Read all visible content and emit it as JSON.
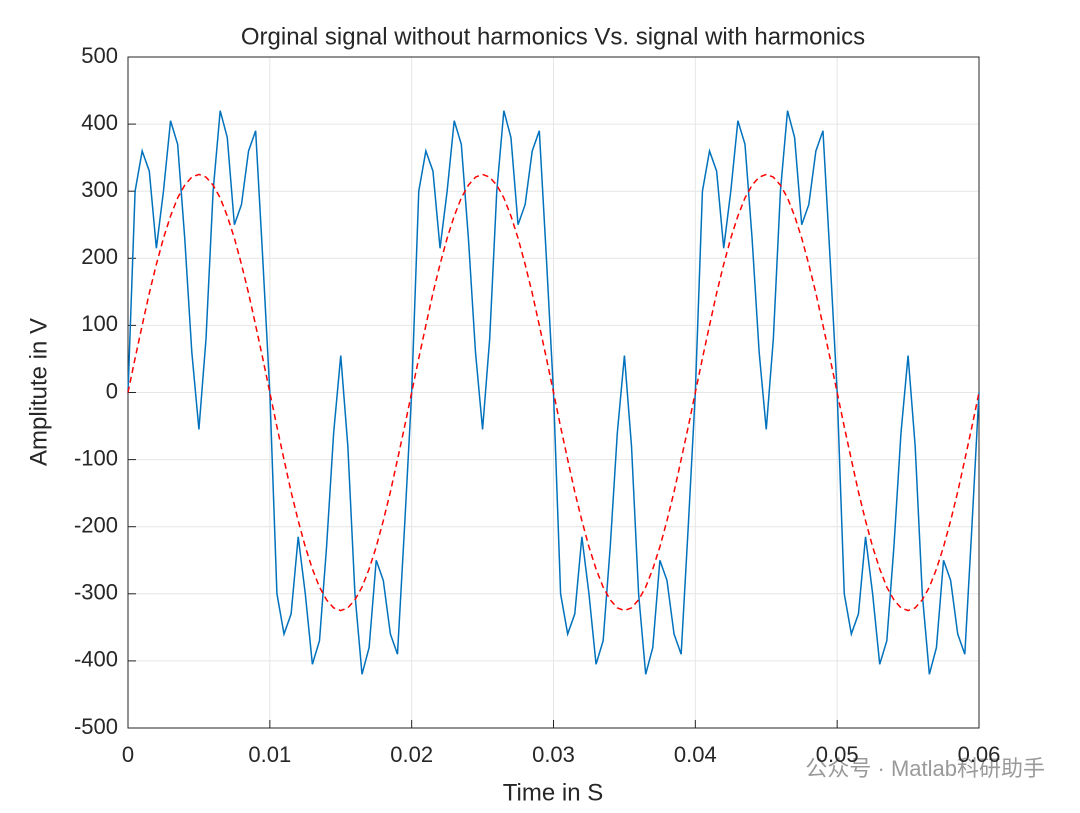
{
  "chart_data": {
    "type": "line",
    "title": "Orginal signal without harmonics Vs. signal with harmonics",
    "xlabel": "Time in S",
    "ylabel": "Amplitute in V",
    "watermark": "公众号 · Matlab科研助手",
    "xlim": [
      0,
      0.06
    ],
    "xticks": [
      0,
      0.01,
      0.02,
      0.03,
      0.04,
      0.05,
      0.06
    ],
    "ylim": [
      -500,
      500
    ],
    "yticks": [
      -500,
      -400,
      -300,
      -200,
      -100,
      0,
      100,
      200,
      300,
      400,
      500
    ],
    "grid": true,
    "x": [
      0,
      0.0005,
      0.001,
      0.0015,
      0.002,
      0.0025,
      0.003,
      0.0035,
      0.004,
      0.0045,
      0.005,
      0.0055,
      0.006,
      0.0065,
      0.007,
      0.0075,
      0.008,
      0.0085,
      0.009,
      0.0095,
      0.01,
      0.0105,
      0.011,
      0.0115,
      0.012,
      0.0125,
      0.013,
      0.0135,
      0.014,
      0.0145,
      0.015,
      0.0155,
      0.016,
      0.0165,
      0.017,
      0.0175,
      0.018,
      0.0185,
      0.019,
      0.0195,
      0.02,
      0.0205,
      0.021,
      0.0215,
      0.022,
      0.0225,
      0.023,
      0.0235,
      0.024,
      0.0245,
      0.025,
      0.0255,
      0.026,
      0.0265,
      0.027,
      0.0275,
      0.028,
      0.0285,
      0.029,
      0.0295,
      0.03,
      0.0305,
      0.031,
      0.0315,
      0.032,
      0.0325,
      0.033,
      0.0335,
      0.034,
      0.0345,
      0.035,
      0.0355,
      0.036,
      0.0365,
      0.037,
      0.0375,
      0.038,
      0.0385,
      0.039,
      0.0395,
      0.04,
      0.0405,
      0.041,
      0.0415,
      0.042,
      0.0425,
      0.043,
      0.0435,
      0.044,
      0.0445,
      0.045,
      0.0455,
      0.046,
      0.0465,
      0.047,
      0.0475,
      0.048,
      0.0485,
      0.049,
      0.0495,
      0.05,
      0.0505,
      0.051,
      0.0515,
      0.052,
      0.0525,
      0.053,
      0.0535,
      0.054,
      0.0545,
      0.055,
      0.0555,
      0.056,
      0.0565,
      0.057,
      0.0575,
      0.058,
      0.0585,
      0.059,
      0.0595,
      0.06
    ],
    "series": [
      {
        "name": "signal with harmonics",
        "color": "#0072bd",
        "dash": false,
        "values": [
          0,
          300,
          360,
          330,
          215,
          300,
          405,
          370,
          230,
          60,
          -55,
          80,
          300,
          420,
          380,
          250,
          280,
          360,
          390,
          200,
          0,
          -300,
          -360,
          -330,
          -215,
          -300,
          -405,
          -370,
          -230,
          -60,
          55,
          -80,
          -300,
          -420,
          -380,
          -250,
          -280,
          -360,
          -390,
          -200,
          0,
          300,
          360,
          330,
          215,
          300,
          405,
          370,
          230,
          60,
          -55,
          80,
          300,
          420,
          380,
          250,
          280,
          360,
          390,
          200,
          0,
          -300,
          -360,
          -330,
          -215,
          -300,
          -405,
          -370,
          -230,
          -60,
          55,
          -80,
          -300,
          -420,
          -380,
          -250,
          -280,
          -360,
          -390,
          -200,
          0,
          300,
          360,
          330,
          215,
          300,
          405,
          370,
          230,
          60,
          -55,
          80,
          300,
          420,
          380,
          250,
          280,
          360,
          390,
          200,
          0,
          -300,
          -360,
          -330,
          -215,
          -300,
          -405,
          -370,
          -230,
          -60,
          55,
          -80,
          -300,
          -420,
          -380,
          -250,
          -280,
          -360,
          -390,
          -200,
          0
        ]
      },
      {
        "name": "signal without harmonics",
        "color": "#ff0000",
        "dash": true,
        "values": [
          0,
          51,
          100,
          148,
          191,
          230,
          263,
          290,
          309,
          321,
          325,
          321,
          309,
          290,
          263,
          230,
          191,
          148,
          100,
          51,
          0,
          -51,
          -100,
          -148,
          -191,
          -230,
          -263,
          -290,
          -309,
          -321,
          -325,
          -321,
          -309,
          -290,
          -263,
          -230,
          -191,
          -148,
          -100,
          -51,
          0,
          51,
          100,
          148,
          191,
          230,
          263,
          290,
          309,
          321,
          325,
          321,
          309,
          290,
          263,
          230,
          191,
          148,
          100,
          51,
          0,
          -51,
          -100,
          -148,
          -191,
          -230,
          -263,
          -290,
          -309,
          -321,
          -325,
          -321,
          -309,
          -290,
          -263,
          -230,
          -191,
          -148,
          -100,
          -51,
          0,
          51,
          100,
          148,
          191,
          230,
          263,
          290,
          309,
          321,
          325,
          321,
          309,
          290,
          263,
          230,
          191,
          148,
          100,
          51,
          0,
          -51,
          -100,
          -148,
          -191,
          -230,
          -263,
          -290,
          -309,
          -321,
          -325,
          -321,
          -309,
          -290,
          -263,
          -230,
          -191,
          -148,
          -100,
          -51,
          0
        ]
      }
    ]
  }
}
